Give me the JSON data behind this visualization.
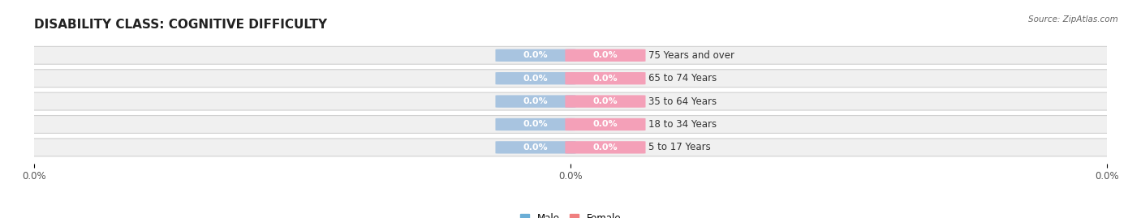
{
  "title": "DISABILITY CLASS: COGNITIVE DIFFICULTY",
  "source": "Source: ZipAtlas.com",
  "categories": [
    "5 to 17 Years",
    "18 to 34 Years",
    "35 to 64 Years",
    "65 to 74 Years",
    "75 Years and over"
  ],
  "male_values": [
    0.0,
    0.0,
    0.0,
    0.0,
    0.0
  ],
  "female_values": [
    0.0,
    0.0,
    0.0,
    0.0,
    0.0
  ],
  "male_color": "#a8c4e0",
  "female_color": "#f4a0b8",
  "bar_border_color": "#d0d0d0",
  "male_legend_color": "#6baed6",
  "female_legend_color": "#f08080",
  "xlim_left": -1.0,
  "xlim_right": 1.0,
  "title_fontsize": 11,
  "label_fontsize": 8.5,
  "tick_fontsize": 8.5,
  "bg_color": "#ffffff",
  "row_bg_color": "#f0f0f0"
}
